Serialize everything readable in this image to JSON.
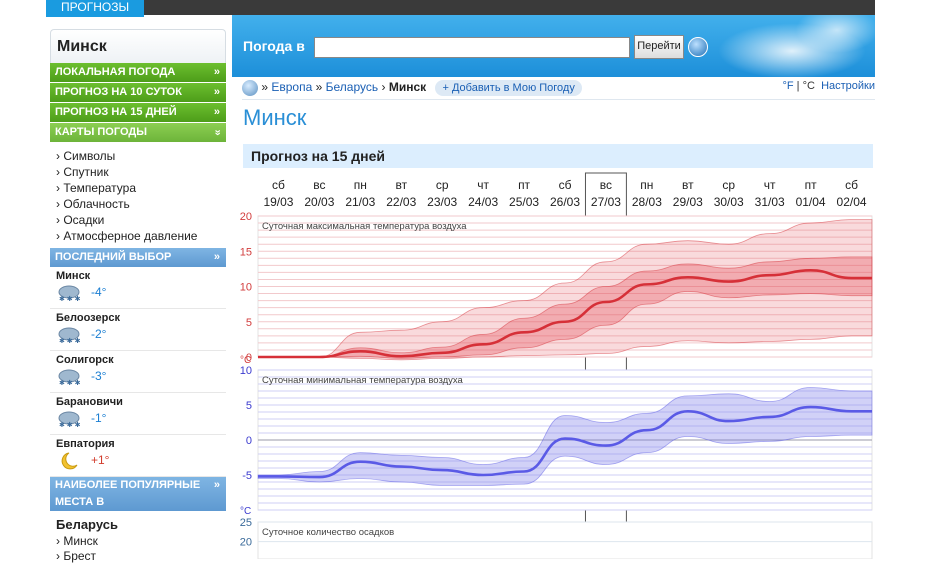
{
  "top": {
    "tab": "ПРОГНОЗЫ"
  },
  "left": {
    "city_title": "Минск",
    "menu": [
      {
        "label": "ЛОКАЛЬНАЯ ПОГОДА",
        "arrow": "»"
      },
      {
        "label": "ПРОГНОЗ НА 10 СУТОК",
        "arrow": "»"
      },
      {
        "label": "ПРОГНОЗ НА 15 ДНЕЙ",
        "arrow": "»"
      },
      {
        "label": "КАРТЫ ПОГОДЫ",
        "arrow": "»"
      }
    ],
    "maps": [
      "› Символы",
      "› Спутник",
      "› Температура",
      "› Облачность",
      "› Осадки",
      "› Атмосферное давление"
    ],
    "recent_header": "ПОСЛЕДНИЙ ВЫБОР",
    "recent": [
      {
        "name": "Минск",
        "temp": "-4°",
        "icon": "snow-cloud-icon"
      },
      {
        "name": "Белоозерск",
        "temp": "-2°",
        "icon": "snow-cloud-icon"
      },
      {
        "name": "Солигорск",
        "temp": "-3°",
        "icon": "snow-cloud-icon"
      },
      {
        "name": "Барановичи",
        "temp": "-1°",
        "icon": "snow-cloud-icon"
      },
      {
        "name": "Евпатория",
        "temp": "+1°",
        "icon": "moon-icon"
      }
    ],
    "popular_header": "НАИБОЛЕЕ ПОПУЛЯРНЫЕ МЕСТА В",
    "country": "Беларусь",
    "cities": [
      "› Минск",
      "› Брест"
    ]
  },
  "header": {
    "search_label": "Погода в",
    "search_value": "",
    "go_button": "Перейти"
  },
  "breadcrumb": {
    "sep1": "»",
    "europe": "Европа",
    "sep2": "»",
    "belarus": "Беларусь",
    "sep3": "›",
    "city": "Минск",
    "add": "+ Добавить в Мою Погоду",
    "unit_f": "°F",
    "unit_sep": "|",
    "unit_c": "°C",
    "settings": "Настройки"
  },
  "page_title": "Минск",
  "forecast_header": "Прогноз на 15 дней",
  "colors": {
    "max_line": "#d63038",
    "min_line": "#5a5ae6",
    "green": "#5aa820",
    "blue_header": "#2a93dc"
  },
  "chart_data": {
    "type": "area",
    "days": [
      {
        "dow": "сб",
        "date": "19/03"
      },
      {
        "dow": "вс",
        "date": "20/03"
      },
      {
        "dow": "пн",
        "date": "21/03"
      },
      {
        "dow": "вт",
        "date": "22/03"
      },
      {
        "dow": "ср",
        "date": "23/03"
      },
      {
        "dow": "чт",
        "date": "24/03"
      },
      {
        "dow": "пт",
        "date": "25/03"
      },
      {
        "dow": "сб",
        "date": "26/03"
      },
      {
        "dow": "вс",
        "date": "27/03"
      },
      {
        "dow": "пн",
        "date": "28/03"
      },
      {
        "dow": "вт",
        "date": "29/03"
      },
      {
        "dow": "ср",
        "date": "30/03"
      },
      {
        "dow": "чт",
        "date": "31/03"
      },
      {
        "dow": "пт",
        "date": "01/04"
      },
      {
        "dow": "сб",
        "date": "02/04"
      }
    ],
    "highlight_day": "27/03",
    "panels": [
      {
        "title": "Суточная максимальная температура воздуха",
        "unit": "°C",
        "yticks": [
          0,
          5,
          10,
          15,
          20
        ],
        "ylim": [
          0,
          20
        ],
        "median": [
          0,
          0,
          0.8,
          0.1,
          0.6,
          1.8,
          3.5,
          5,
          7.8,
          10.3,
          11.3,
          10.7,
          11.6,
          12.3,
          11.2
        ],
        "inner_low": [
          0,
          0,
          0.1,
          -0.2,
          0,
          0.3,
          1.3,
          2.5,
          4.5,
          7.5,
          9.3,
          8.4,
          8.8,
          9,
          8.7
        ],
        "inner_high": [
          0,
          0,
          1.3,
          0.6,
          1.4,
          3.2,
          5.5,
          7.5,
          10,
          12.2,
          13.2,
          12.6,
          13.5,
          14,
          14.2
        ],
        "outer_low": [
          0,
          0,
          -0.2,
          -0.4,
          -0.2,
          0,
          0.2,
          0.3,
          0.5,
          1.5,
          2.3,
          2,
          2.2,
          2.5,
          3
        ],
        "outer_high": [
          0,
          0,
          3.5,
          3.8,
          5,
          7,
          8,
          10.5,
          13.5,
          16,
          16.5,
          16,
          17.5,
          19,
          19.5
        ]
      },
      {
        "title": "Суточная минимальная температура воздуха",
        "unit": "°C",
        "yticks": [
          -5,
          0,
          5,
          10
        ],
        "ylim": [
          -10,
          10
        ],
        "median": [
          -5.2,
          -5.3,
          -3.1,
          -3.8,
          -4.3,
          -5,
          -4.5,
          0.2,
          -0.8,
          1.4,
          4.1,
          2.7,
          3.3,
          4.7,
          4.1
        ],
        "inner_low": [
          -5.5,
          -6,
          -5.5,
          -6,
          -6.5,
          -6.5,
          -6.3,
          -2.3,
          -3.5,
          -1.8,
          0.5,
          -0.5,
          -0.2,
          0.5,
          0.7
        ],
        "inner_high": [
          -5,
          -4.5,
          -1.8,
          -2.2,
          -2.5,
          -3.5,
          -2.5,
          3.5,
          2.5,
          3.8,
          6.3,
          6.6,
          5.5,
          7.5,
          7
        ]
      },
      {
        "title": "Суточное количество осадков",
        "unit": "",
        "yticks": [
          20,
          25
        ],
        "ylim": [
          0,
          25
        ]
      }
    ]
  }
}
